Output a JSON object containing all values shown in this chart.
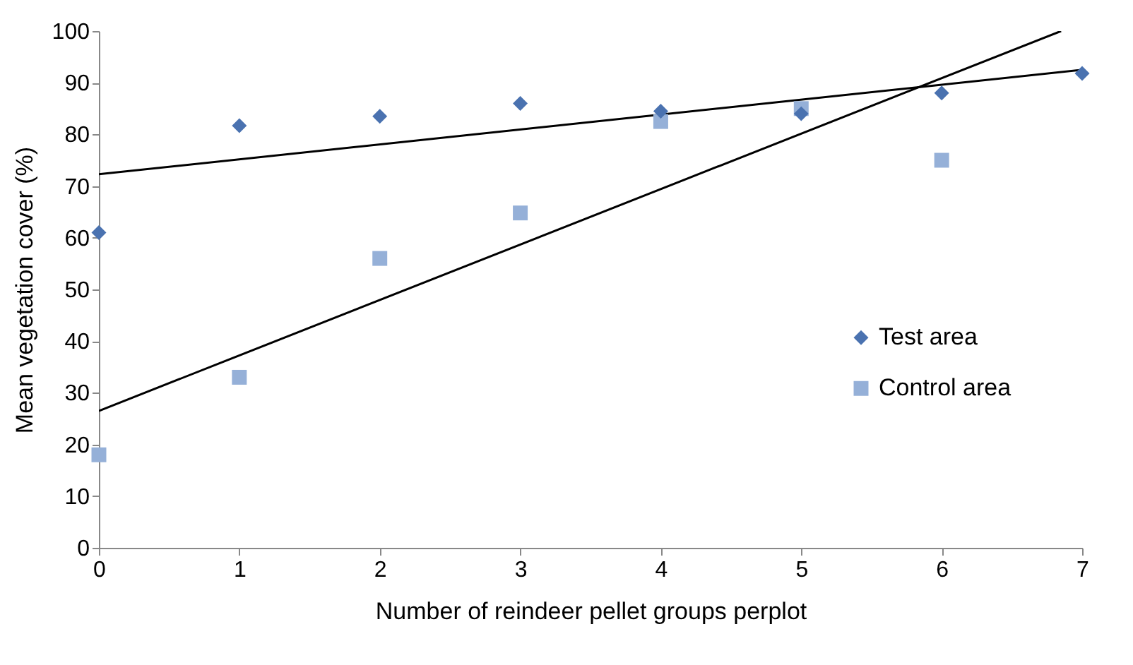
{
  "chart_data": {
    "type": "scatter",
    "xlabel": "Number of reindeer pellet groups perplot",
    "ylabel": "Mean vegetation cover (%)",
    "xlim": [
      0,
      7
    ],
    "xticks": [
      0,
      1,
      2,
      3,
      4,
      5,
      6,
      7
    ],
    "ylim": [
      0,
      100
    ],
    "yticks": [
      0,
      10,
      20,
      30,
      40,
      50,
      60,
      70,
      80,
      90,
      100
    ],
    "grid": false,
    "legend": "right",
    "series": [
      {
        "name": "Test area",
        "color": "#4a72b0",
        "marker": "diamond",
        "x": [
          0,
          1,
          2,
          3,
          4,
          5,
          6,
          7
        ],
        "values": [
          61,
          81.7,
          83.5,
          86,
          84.5,
          84,
          88,
          91.8
        ]
      },
      {
        "name": "Control area",
        "color": "#95b0d8",
        "marker": "square",
        "x": [
          0,
          1,
          2,
          3,
          4,
          5,
          6
        ],
        "values": [
          18,
          33,
          56,
          64.8,
          82.5,
          85,
          75
        ]
      },
      {
        "type": "line",
        "color": "#000000",
        "x": [
          0,
          7
        ],
        "values": [
          72.3,
          92.5
        ]
      },
      {
        "type": "line",
        "color": "#000000",
        "x": [
          0,
          6.85
        ],
        "values": [
          26.5,
          100
        ]
      }
    ]
  }
}
